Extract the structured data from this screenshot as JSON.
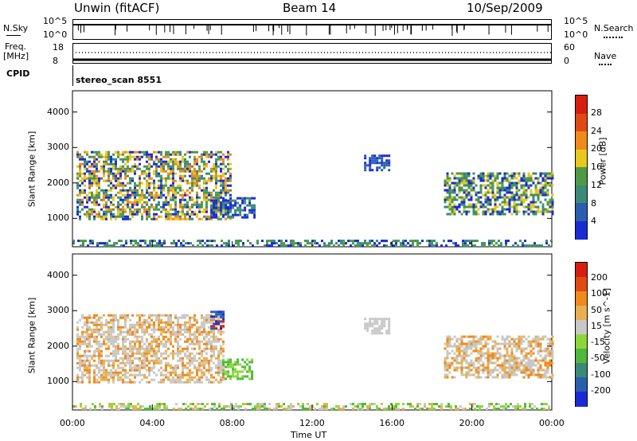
{
  "header": {
    "station": "Unwin (fitACF)",
    "beam": "Beam 14",
    "date": "10/Sep/2009"
  },
  "top_panel": {
    "left_label_sky": "N.Sky",
    "left_tick_hi": "10^5",
    "left_tick_lo": "10^0",
    "right_label_search": "N.Search",
    "right_tick_hi": "10^5",
    "right_tick_lo": "10^0",
    "freq_label_1": "Freq.",
    "freq_label_2": "[MHz]",
    "freq_tick_hi": "18",
    "freq_tick_lo": "8",
    "nave_label": "Nave",
    "nave_tick_hi": "60",
    "nave_tick_lo": "0",
    "cpid_label": "CPID",
    "cpid_value": "stereo_scan 8551"
  },
  "chart_data": [
    {
      "type": "heatmap",
      "title": "Power",
      "xlabel": "",
      "ylabel": "Slant Range [km]",
      "x_ticks": [
        "00:00",
        "04:00",
        "08:00",
        "12:00",
        "16:00",
        "20:00",
        "00:00"
      ],
      "y_ticks": [
        "1000",
        "2000",
        "3000",
        "4000"
      ],
      "ylim": [
        200,
        4600
      ],
      "xlim_hours": [
        0,
        24
      ],
      "colorbar_label": "Power [dB]",
      "colorbar_ticks": [
        "4",
        "8",
        "12",
        "16",
        "20",
        "24",
        "28"
      ],
      "colorbar_colors": [
        "#1a2bd6",
        "#2a5fb0",
        "#3a8a78",
        "#4f9a46",
        "#e8c81e",
        "#f08a1a",
        "#e04a12",
        "#d81e0e"
      ],
      "regions": [
        {
          "t0": 0.2,
          "t1": 7.9,
          "r0": 1000,
          "r1": 2900,
          "level": "mixed",
          "colors": [
            "#1a2bd6",
            "#3a8a78",
            "#4f9a46",
            "#e8c81e",
            "#f08a1a"
          ]
        },
        {
          "t0": 6.9,
          "t1": 9.1,
          "r0": 1050,
          "r1": 1600,
          "level": "low",
          "colors": [
            "#1a2bd6",
            "#3a8a78"
          ]
        },
        {
          "t0": 14.6,
          "t1": 15.9,
          "r0": 2350,
          "r1": 2800,
          "level": "low",
          "colors": [
            "#1a2bd6",
            "#2a5fb0"
          ]
        },
        {
          "t0": 18.6,
          "t1": 24.0,
          "r0": 1100,
          "r1": 2300,
          "level": "mixed",
          "colors": [
            "#1a2bd6",
            "#3a8a78",
            "#4f9a46",
            "#e8c81e"
          ]
        },
        {
          "t0": 0.0,
          "t1": 24.0,
          "r0": 200,
          "r1": 400,
          "level": "ground",
          "colors": [
            "#1a2bd6",
            "#3a8a78",
            "#4f9a46"
          ]
        }
      ]
    },
    {
      "type": "heatmap",
      "title": "Velocity",
      "xlabel": "Time UT",
      "ylabel": "Slant Range [km]",
      "x_ticks": [
        "00:00",
        "04:00",
        "08:00",
        "12:00",
        "16:00",
        "20:00",
        "00:00"
      ],
      "y_ticks": [
        "1000",
        "2000",
        "3000",
        "4000"
      ],
      "ylim": [
        200,
        4600
      ],
      "xlim_hours": [
        0,
        24
      ],
      "colorbar_label": "Velocity [m s^-1]",
      "colorbar_ticks": [
        "200",
        "100",
        "50",
        "15",
        "-15",
        "-50",
        "-100",
        "-200"
      ],
      "colorbar_colors": [
        "#1a2bd6",
        "#2a5fb0",
        "#3a8a78",
        "#4fb83a",
        "#8cd63a",
        "#c8c8c8",
        "#e8b050",
        "#f08a1a",
        "#e04a12",
        "#d81e0e"
      ],
      "regions": [
        {
          "t0": 0.2,
          "t1": 7.6,
          "r0": 1000,
          "r1": 2900,
          "level": "mixed",
          "colors": [
            "#c8c8c8",
            "#c8c8c8",
            "#e8b050",
            "#f08a1a"
          ]
        },
        {
          "t0": 6.9,
          "t1": 7.6,
          "r0": 2500,
          "r1": 3000,
          "level": "high",
          "colors": [
            "#1a2bd6",
            "#d81e0e",
            "#2a5fb0"
          ]
        },
        {
          "t0": 7.5,
          "t1": 9.0,
          "r0": 1050,
          "r1": 1650,
          "level": "green",
          "colors": [
            "#4fb83a",
            "#8cd63a"
          ]
        },
        {
          "t0": 14.6,
          "t1": 15.9,
          "r0": 2350,
          "r1": 2800,
          "level": "low",
          "colors": [
            "#c8c8c8"
          ]
        },
        {
          "t0": 18.6,
          "t1": 24.0,
          "r0": 1100,
          "r1": 2300,
          "level": "mixed",
          "colors": [
            "#c8c8c8",
            "#c8c8c8",
            "#e8b050",
            "#f08a1a"
          ]
        },
        {
          "t0": 0.0,
          "t1": 24.0,
          "r0": 200,
          "r1": 400,
          "level": "ground",
          "colors": [
            "#8cd63a",
            "#4fb83a",
            "#e8b050",
            "#c8c8c8"
          ]
        }
      ]
    }
  ]
}
